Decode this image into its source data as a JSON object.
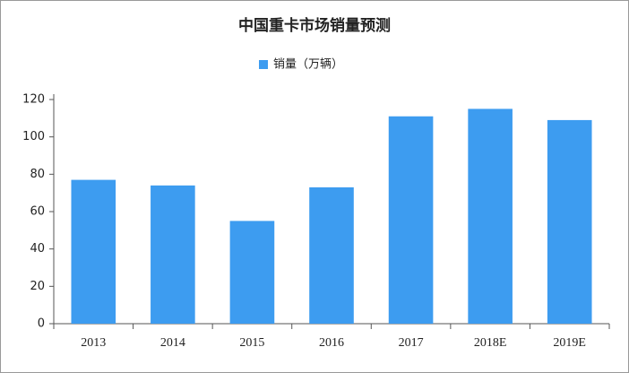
{
  "chart_data": {
    "type": "bar",
    "title": "中国重卡市场销量预测",
    "series": [
      {
        "name": "销量（万辆）",
        "color": "#3d9cf0",
        "values": [
          77,
          74,
          55,
          73,
          111,
          115,
          109
        ]
      }
    ],
    "categories": [
      "2013",
      "2014",
      "2015",
      "2016",
      "2017",
      "2018E",
      "2019E"
    ],
    "ylim": [
      0,
      120
    ],
    "yticks": [
      0,
      20,
      40,
      60,
      80,
      100,
      120
    ],
    "grid": false
  }
}
